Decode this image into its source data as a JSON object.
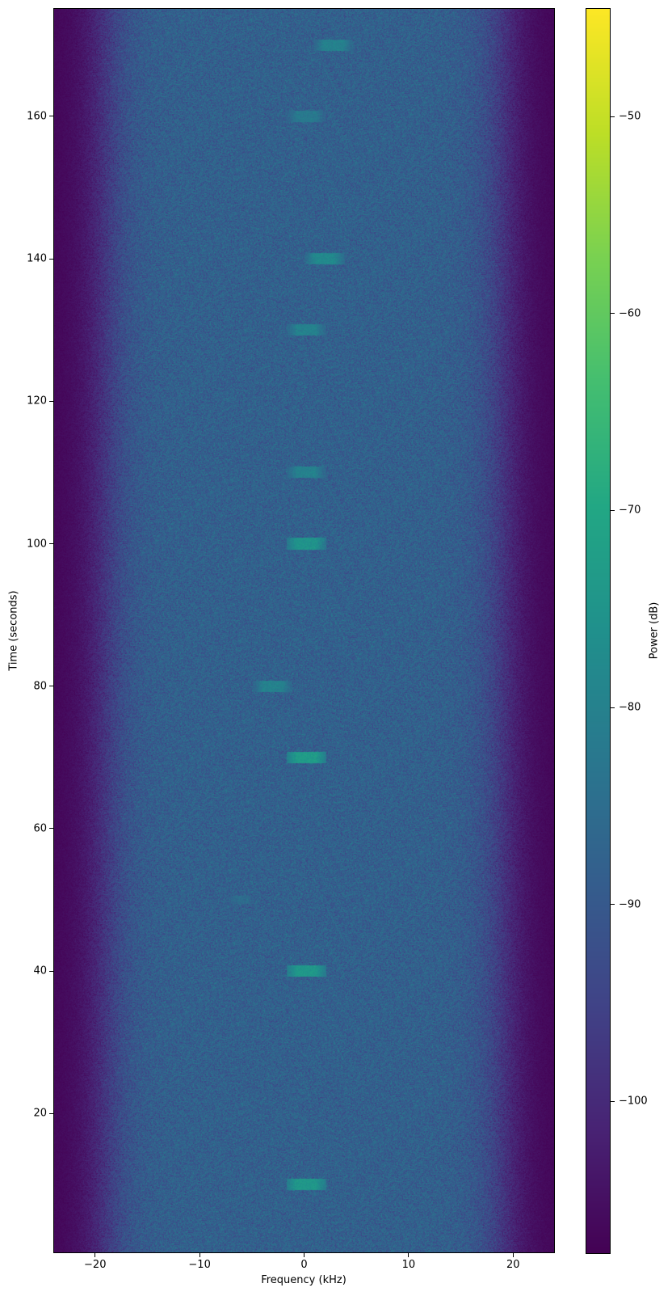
{
  "chart_data": {
    "type": "heatmap",
    "subtype": "spectrogram",
    "title": "",
    "xlabel": "Frequency (kHz)",
    "ylabel": "Time (seconds)",
    "xlim": [
      -24,
      24
    ],
    "ylim": [
      0.4,
      175.2
    ],
    "xticks": [
      -20,
      -10,
      0,
      10,
      20
    ],
    "yticks": [
      20,
      40,
      60,
      80,
      100,
      120,
      140,
      160
    ],
    "grid": false,
    "colormap": "viridis",
    "colorbar": {
      "label": "Power (dB)",
      "range": [
        -107.7,
        -44.5
      ],
      "ticks": [
        -50,
        -60,
        -70,
        -80,
        -90,
        -100
      ]
    },
    "noise_floor_db": -88,
    "band_edge_khz": 19,
    "out_of_band_db": -107,
    "bursts": [
      {
        "time": 170,
        "freq_khz": 2.8,
        "bandwidth_khz": 2.6,
        "duration_s": 1.6,
        "power_db": -80
      },
      {
        "time": 160,
        "freq_khz": 0.2,
        "bandwidth_khz": 2.6,
        "duration_s": 1.6,
        "power_db": -82
      },
      {
        "time": 140,
        "freq_khz": 2.0,
        "bandwidth_khz": 2.6,
        "duration_s": 1.6,
        "power_db": -78
      },
      {
        "time": 130,
        "freq_khz": 0.2,
        "bandwidth_khz": 2.6,
        "duration_s": 1.6,
        "power_db": -80
      },
      {
        "time": 110,
        "freq_khz": 0.2,
        "bandwidth_khz": 2.6,
        "duration_s": 1.6,
        "power_db": -80
      },
      {
        "time": 100,
        "freq_khz": 0.2,
        "bandwidth_khz": 2.6,
        "duration_s": 1.6,
        "power_db": -75
      },
      {
        "time": 80,
        "freq_khz": -3.0,
        "bandwidth_khz": 2.6,
        "duration_s": 1.6,
        "power_db": -80
      },
      {
        "time": 70,
        "freq_khz": 0.2,
        "bandwidth_khz": 2.6,
        "duration_s": 1.6,
        "power_db": -73
      },
      {
        "time": 50,
        "freq_khz": -6.0,
        "bandwidth_khz": 2.0,
        "duration_s": 1.2,
        "power_db": -86
      },
      {
        "time": 40,
        "freq_khz": 0.2,
        "bandwidth_khz": 2.6,
        "duration_s": 1.6,
        "power_db": -74
      },
      {
        "time": 10,
        "freq_khz": 0.2,
        "bandwidth_khz": 2.6,
        "duration_s": 1.6,
        "power_db": -74
      }
    ]
  }
}
